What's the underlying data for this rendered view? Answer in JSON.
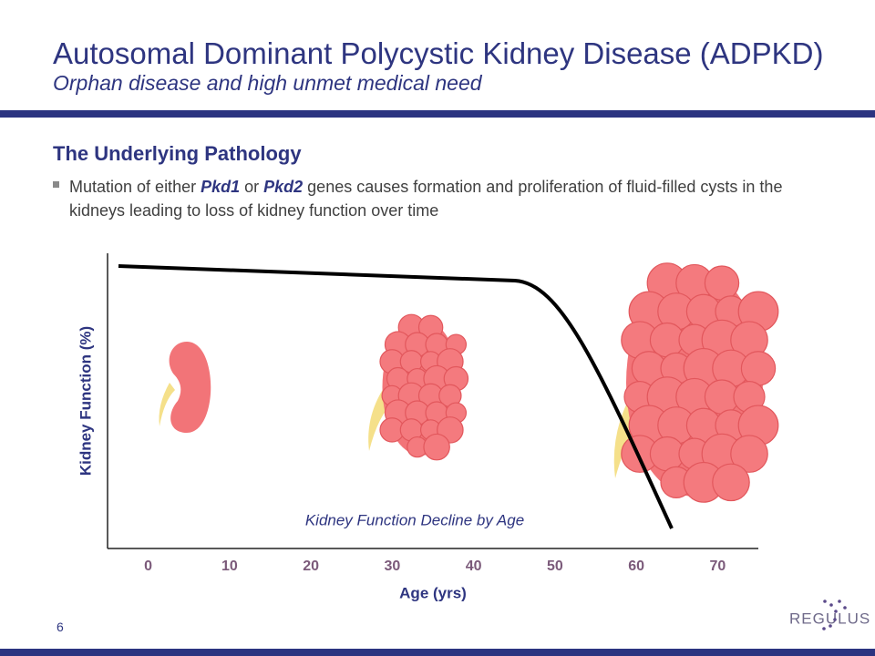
{
  "header": {
    "title": "Autosomal Dominant Polycystic Kidney Disease (ADPKD)",
    "subtitle": "Orphan disease and high unmet medical need"
  },
  "section": {
    "heading": "The Underlying Pathology",
    "bullet": [
      "Mutation of either ",
      "Pkd1",
      " or ",
      "Pkd2",
      " genes causes formation and proliferation of fluid-filled cysts in the kidneys leading to loss of kidney function over time"
    ]
  },
  "chart": {
    "y_label": "Kidney Function (%)",
    "x_label": "Age (yrs)",
    "caption": "Kidney Function Decline by Age",
    "xlim": [
      -5,
      75
    ],
    "xticks": [
      0,
      10,
      20,
      30,
      40,
      50,
      60,
      70
    ]
  },
  "footer": {
    "page": "6",
    "logo": "REGULUS"
  }
}
